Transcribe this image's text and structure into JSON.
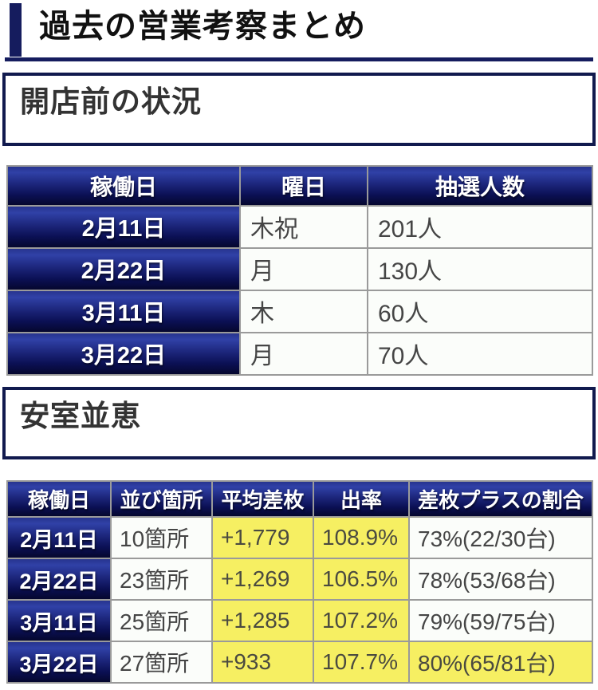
{
  "page": {
    "title": "過去の営業考察まとめ"
  },
  "colors": {
    "accent_navy": "#151c5e",
    "header_gradient_light": "#3041a7",
    "header_gradient_dark": "#05072e",
    "highlight_yellow": "#f6ef62",
    "cell_background": "#fbfdfa",
    "border_gray": "#9a9a9a"
  },
  "sections": [
    {
      "title": "開店前の状況",
      "table": {
        "headers": [
          "稼働日",
          "曜日",
          "抽選人数"
        ],
        "rows": [
          [
            "2月11日",
            "木祝",
            "201人"
          ],
          [
            "2月22日",
            "月",
            "130人"
          ],
          [
            "3月11日",
            "木",
            "60人"
          ],
          [
            "3月22日",
            "月",
            "70人"
          ]
        ]
      }
    },
    {
      "title": "安室並恵",
      "table": {
        "headers": [
          "稼働日",
          "並び箇所",
          "平均差枚",
          "出率",
          "差枚プラスの割合"
        ],
        "rows": [
          [
            "2月11日",
            "10箇所",
            "+1,779",
            "108.9%",
            "73%(22/30台)"
          ],
          [
            "2月22日",
            "23箇所",
            "+1,269",
            "106.5%",
            "78%(53/68台)"
          ],
          [
            "3月11日",
            "25箇所",
            "+1,285",
            "107.2%",
            "79%(59/75台)"
          ],
          [
            "3月22日",
            "27箇所",
            "+933",
            "107.7%",
            "80%(65/81台)"
          ]
        ],
        "highlighted_columns": [
          "平均差枚",
          "出率"
        ],
        "highlighted_cells": [
          "3月22日の差枚プラスの割合"
        ]
      }
    }
  ]
}
